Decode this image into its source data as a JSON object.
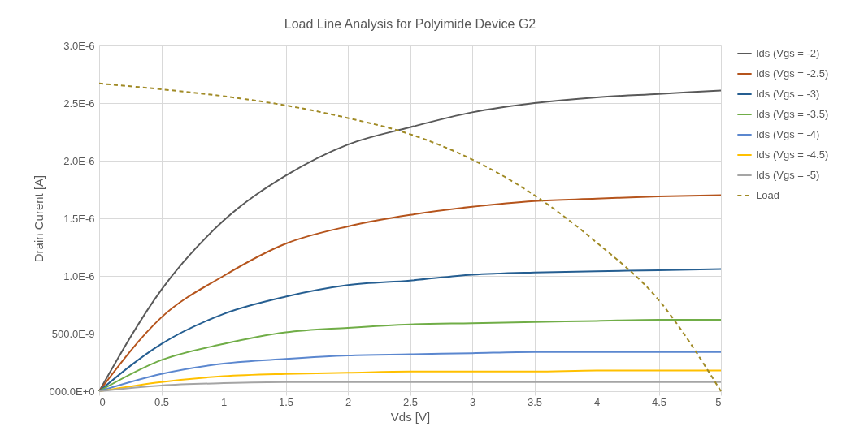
{
  "chart_data": {
    "type": "line",
    "title": "Load Line Analysis for Polyimide Device G2",
    "xlabel": "Vds [V]",
    "ylabel": "Drain Curent [A]",
    "x": [
      0,
      0.5,
      1,
      1.5,
      2,
      2.5,
      3,
      3.5,
      4,
      4.5,
      5
    ],
    "series": [
      {
        "name": "Ids (Vgs = -2)",
        "color": "#595959",
        "values": [
          0,
          8.8e-07,
          1.48e-06,
          1.87e-06,
          2.14e-06,
          2.29e-06,
          2.42e-06,
          2.5e-06,
          2.55e-06,
          2.58e-06,
          2.61e-06
        ]
      },
      {
        "name": "Ids (Vgs = -2.5)",
        "color": "#b5541c",
        "values": [
          0,
          6.4e-07,
          1e-06,
          1.28e-06,
          1.43e-06,
          1.53e-06,
          1.6e-06,
          1.65e-06,
          1.67e-06,
          1.69e-06,
          1.7e-06
        ]
      },
      {
        "name": "Ids (Vgs = -3)",
        "color": "#255e91",
        "values": [
          0,
          4.1e-07,
          6.7e-07,
          8.2e-07,
          9.2e-07,
          9.6e-07,
          1.01e-06,
          1.03e-06,
          1.04e-06,
          1.05e-06,
          1.06e-06
        ]
      },
      {
        "name": "Ids (Vgs = -3.5)",
        "color": "#70ad47",
        "values": [
          0,
          2.7e-07,
          4.1e-07,
          5.1e-07,
          5.5e-07,
          5.8e-07,
          5.9e-07,
          6e-07,
          6.1e-07,
          6.2e-07,
          6.2e-07
        ]
      },
      {
        "name": "Ids (Vgs = -4)",
        "color": "#5b87cf",
        "values": [
          0,
          1.5e-07,
          2.4e-07,
          2.8e-07,
          3.1e-07,
          3.2e-07,
          3.3e-07,
          3.4e-07,
          3.4e-07,
          3.4e-07,
          3.4e-07
        ]
      },
      {
        "name": "Ids (Vgs = -4.5)",
        "color": "#ffc000",
        "values": [
          0,
          8e-08,
          1.3e-07,
          1.5e-07,
          1.6e-07,
          1.7e-07,
          1.7e-07,
          1.7e-07,
          1.8e-07,
          1.8e-07,
          1.8e-07
        ]
      },
      {
        "name": "Ids (Vgs = -5)",
        "color": "#a5a5a5",
        "values": [
          0,
          5e-08,
          7e-08,
          8e-08,
          8e-08,
          8e-08,
          8e-08,
          8e-08,
          8e-08,
          8e-08,
          8e-08
        ]
      },
      {
        "name": "Load",
        "color": "#a08a25",
        "line_style": "dashed",
        "values": [
          2.67e-06,
          2.62e-06,
          2.56e-06,
          2.48e-06,
          2.37e-06,
          2.23e-06,
          2.01e-06,
          1.7e-06,
          1.29e-06,
          7.9e-07,
          0
        ]
      }
    ],
    "xlim": [
      0,
      5
    ],
    "xticks": [
      0,
      0.5,
      1,
      1.5,
      2,
      2.5,
      3,
      3.5,
      4,
      4.5,
      5
    ],
    "ylim": [
      0,
      3e-06
    ],
    "yticks": [
      {
        "value": 0,
        "label": "000.0E+0"
      },
      {
        "value": 5e-07,
        "label": "500.0E-9"
      },
      {
        "value": 1e-06,
        "label": "1.0E-6"
      },
      {
        "value": 1.5e-06,
        "label": "1.5E-6"
      },
      {
        "value": 2e-06,
        "label": "2.0E-6"
      },
      {
        "value": 2.5e-06,
        "label": "2.5E-6"
      },
      {
        "value": 3e-06,
        "label": "3.0E-6"
      }
    ],
    "grid": true,
    "legend": "right",
    "marker": "none",
    "line_style": "solid"
  }
}
